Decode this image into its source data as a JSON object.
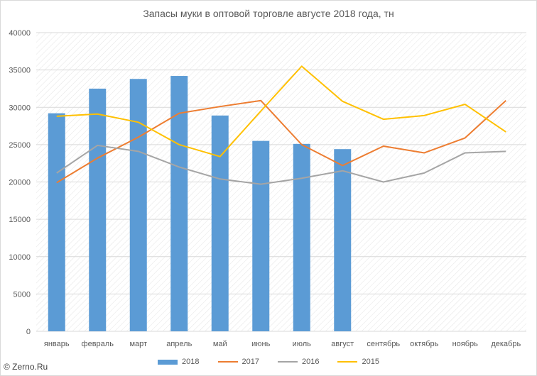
{
  "watermark": "© Zerno.Ru",
  "chart_data": {
    "type": "bar",
    "title": "Запасы муки в оптовой торговле августе 2018 года, тн",
    "xlabel": "",
    "ylabel": "",
    "ylim": [
      0,
      40000
    ],
    "yticks": [
      0,
      5000,
      10000,
      15000,
      20000,
      25000,
      30000,
      35000,
      40000
    ],
    "grid": true,
    "legend_position": "bottom",
    "categories": [
      "январь",
      "февраль",
      "март",
      "апрель",
      "май",
      "июнь",
      "июль",
      "август",
      "сентябрь",
      "октябрь",
      "ноябрь",
      "декабрь"
    ],
    "series": [
      {
        "name": "2018",
        "type": "bar",
        "color": "#5b9bd5",
        "values": [
          29200,
          32500,
          33800,
          34200,
          28900,
          25500,
          25100,
          24400,
          null,
          null,
          null,
          null
        ]
      },
      {
        "name": "2017",
        "type": "line",
        "color": "#ed7d31",
        "values": [
          19900,
          23200,
          26000,
          29200,
          30100,
          30900,
          25000,
          22200,
          24800,
          23900,
          25900,
          30900
        ]
      },
      {
        "name": "2016",
        "type": "line",
        "color": "#a5a5a5",
        "values": [
          21200,
          24900,
          24100,
          22000,
          20400,
          19700,
          20500,
          21500,
          20000,
          21200,
          23900,
          24100
        ]
      },
      {
        "name": "2015",
        "type": "line",
        "color": "#ffc000",
        "values": [
          28800,
          29100,
          28000,
          25000,
          23400,
          29500,
          35500,
          30800,
          28400,
          28900,
          30400,
          26700
        ]
      }
    ]
  }
}
